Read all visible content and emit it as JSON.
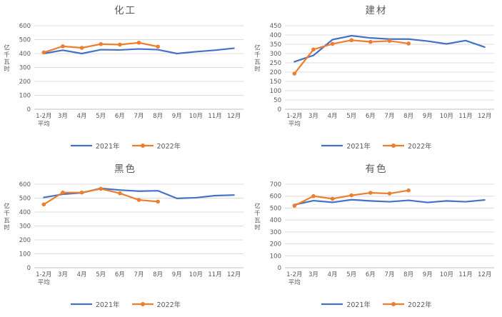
{
  "colors": {
    "series_2021": "#4472C4",
    "series_2022": "#ED7D31",
    "grid": "#DCDCDC",
    "axis": "#BFBFBF",
    "tick_text": "#595959",
    "title_text": "#595959"
  },
  "chart_data": [
    {
      "type": "line",
      "title": "化工",
      "ylabel": "亿千瓦时",
      "categories": [
        "1-2月\n平均",
        "3月",
        "4月",
        "5月",
        "6月",
        "7月",
        "8月",
        "9月",
        "10月",
        "11月",
        "12月"
      ],
      "ylim": [
        0,
        600
      ],
      "ytick_step": 100,
      "grid": true,
      "legend_position": "bottom",
      "series": [
        {
          "name": "2021年",
          "color": "#4472C4",
          "marker": false,
          "values": [
            400,
            424,
            400,
            428,
            426,
            433,
            428,
            400,
            413,
            424,
            438
          ]
        },
        {
          "name": "2022年",
          "color": "#ED7D31",
          "marker": true,
          "values": [
            408,
            452,
            441,
            468,
            464,
            478,
            450
          ]
        }
      ]
    },
    {
      "type": "line",
      "title": "建材",
      "ylabel": "亿千瓦时",
      "categories": [
        "1-2月\n平均",
        "3月",
        "4月",
        "5月",
        "6月",
        "7月",
        "8月",
        "9月",
        "10月",
        "11月",
        "12月"
      ],
      "ylim": [
        0,
        450
      ],
      "ytick_step": 50,
      "grid": true,
      "legend_position": "bottom",
      "series": [
        {
          "name": "2021年",
          "color": "#4472C4",
          "marker": false,
          "values": [
            256,
            290,
            375,
            396,
            384,
            378,
            378,
            367,
            352,
            370,
            335
          ]
        },
        {
          "name": "2022年",
          "color": "#ED7D31",
          "marker": true,
          "values": [
            192,
            322,
            352,
            372,
            363,
            368,
            354
          ]
        }
      ]
    },
    {
      "type": "line",
      "title": "黑色",
      "ylabel": "亿千瓦时",
      "categories": [
        "1-2月\n平均",
        "3月",
        "4月",
        "5月",
        "6月",
        "7月",
        "8月",
        "9月",
        "10月",
        "11月",
        "12月"
      ],
      "ylim": [
        0,
        600
      ],
      "ytick_step": 100,
      "grid": true,
      "legend_position": "bottom",
      "series": [
        {
          "name": "2021年",
          "color": "#4472C4",
          "marker": false,
          "values": [
            505,
            528,
            538,
            570,
            558,
            550,
            553,
            498,
            503,
            518,
            522
          ]
        },
        {
          "name": "2022年",
          "color": "#ED7D31",
          "marker": true,
          "values": [
            455,
            540,
            540,
            567,
            535,
            487,
            475
          ]
        }
      ]
    },
    {
      "type": "line",
      "title": "有色",
      "ylabel": "亿千瓦时",
      "categories": [
        "1-2月\n平均",
        "3月",
        "4月",
        "5月",
        "6月",
        "7月",
        "8月",
        "9月",
        "10月",
        "11月",
        "12月"
      ],
      "ylim": [
        0,
        700
      ],
      "ytick_step": 100,
      "grid": true,
      "legend_position": "bottom",
      "series": [
        {
          "name": "2021年",
          "color": "#4472C4",
          "marker": false,
          "values": [
            528,
            562,
            548,
            570,
            560,
            553,
            565,
            547,
            560,
            553,
            568
          ]
        },
        {
          "name": "2022年",
          "color": "#ED7D31",
          "marker": true,
          "values": [
            520,
            600,
            578,
            607,
            628,
            622,
            648
          ]
        }
      ]
    }
  ]
}
